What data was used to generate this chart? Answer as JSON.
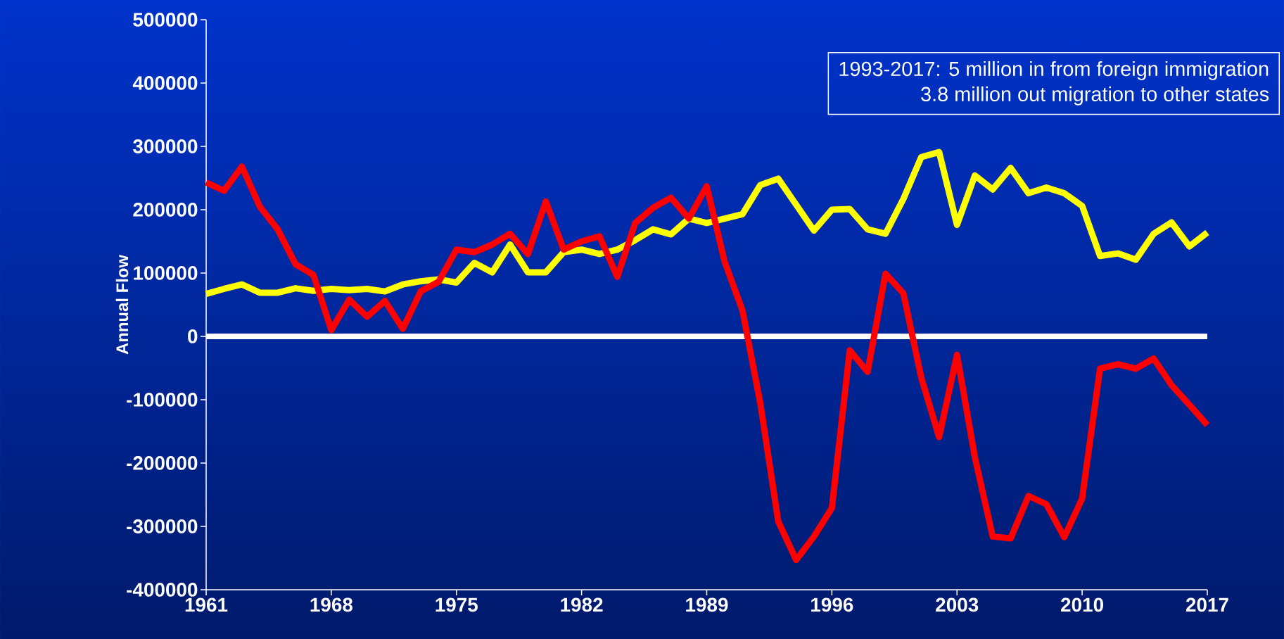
{
  "chart_data": {
    "type": "line",
    "ylabel": "Annual Flow",
    "x": [
      1961,
      1962,
      1963,
      1964,
      1965,
      1966,
      1967,
      1968,
      1969,
      1970,
      1971,
      1972,
      1973,
      1974,
      1975,
      1976,
      1977,
      1978,
      1979,
      1980,
      1981,
      1982,
      1983,
      1984,
      1985,
      1986,
      1987,
      1988,
      1989,
      1990,
      1991,
      1992,
      1993,
      1994,
      1995,
      1996,
      1997,
      1998,
      1999,
      2000,
      2001,
      2002,
      2003,
      2004,
      2005,
      2006,
      2007,
      2008,
      2009,
      2010,
      2011,
      2012,
      2013,
      2014,
      2015,
      2016,
      2017
    ],
    "series": [
      {
        "color": "#ffff00",
        "values": [
          67000,
          75000,
          82000,
          69000,
          69000,
          76000,
          72000,
          75000,
          73000,
          75000,
          71000,
          82000,
          87000,
          90000,
          85000,
          116000,
          101000,
          145000,
          101000,
          101000,
          133000,
          137000,
          130000,
          137000,
          152000,
          169000,
          161000,
          186000,
          179000,
          186000,
          193000,
          239000,
          249000,
          208000,
          167000,
          200000,
          201000,
          169000,
          162000,
          217000,
          283000,
          291000,
          176000,
          254000,
          232000,
          266000,
          226000,
          235000,
          226000,
          206000,
          127000,
          131000,
          121000,
          162000,
          180000,
          142000,
          164000
        ]
      },
      {
        "color": "#ff0000",
        "values": [
          243000,
          230000,
          268000,
          205000,
          169000,
          114000,
          97000,
          10000,
          58000,
          31000,
          56000,
          12000,
          71000,
          86000,
          137000,
          133000,
          145000,
          162000,
          130000,
          213000,
          137000,
          150000,
          158000,
          94000,
          179000,
          203000,
          219000,
          186000,
          237000,
          118000,
          41000,
          -106000,
          -292000,
          -353000,
          -316000,
          -271000,
          -22000,
          -56000,
          99000,
          68000,
          -65000,
          -159000,
          -29000,
          -191000,
          -316000,
          -319000,
          -252000,
          -265000,
          -317000,
          -256000,
          -51000,
          -44000,
          -51000,
          -35000,
          -77000,
          -108000,
          -140000
        ]
      }
    ],
    "xlim": [
      1961,
      2017
    ],
    "ylim": [
      -400000,
      500000
    ],
    "xticks": [
      1961,
      1968,
      1975,
      1982,
      1989,
      1996,
      2003,
      2010,
      2017
    ],
    "yticks": [
      -400000,
      -300000,
      -200000,
      -100000,
      0,
      100000,
      200000,
      300000,
      400000,
      500000
    ],
    "ref_lines": [
      {
        "axis": "y",
        "value": 0,
        "color": "#ffffff"
      }
    ],
    "annotations": [
      "1993-2017: 5 million in from foreign immigration",
      "3.8 million out migration to other states"
    ]
  }
}
